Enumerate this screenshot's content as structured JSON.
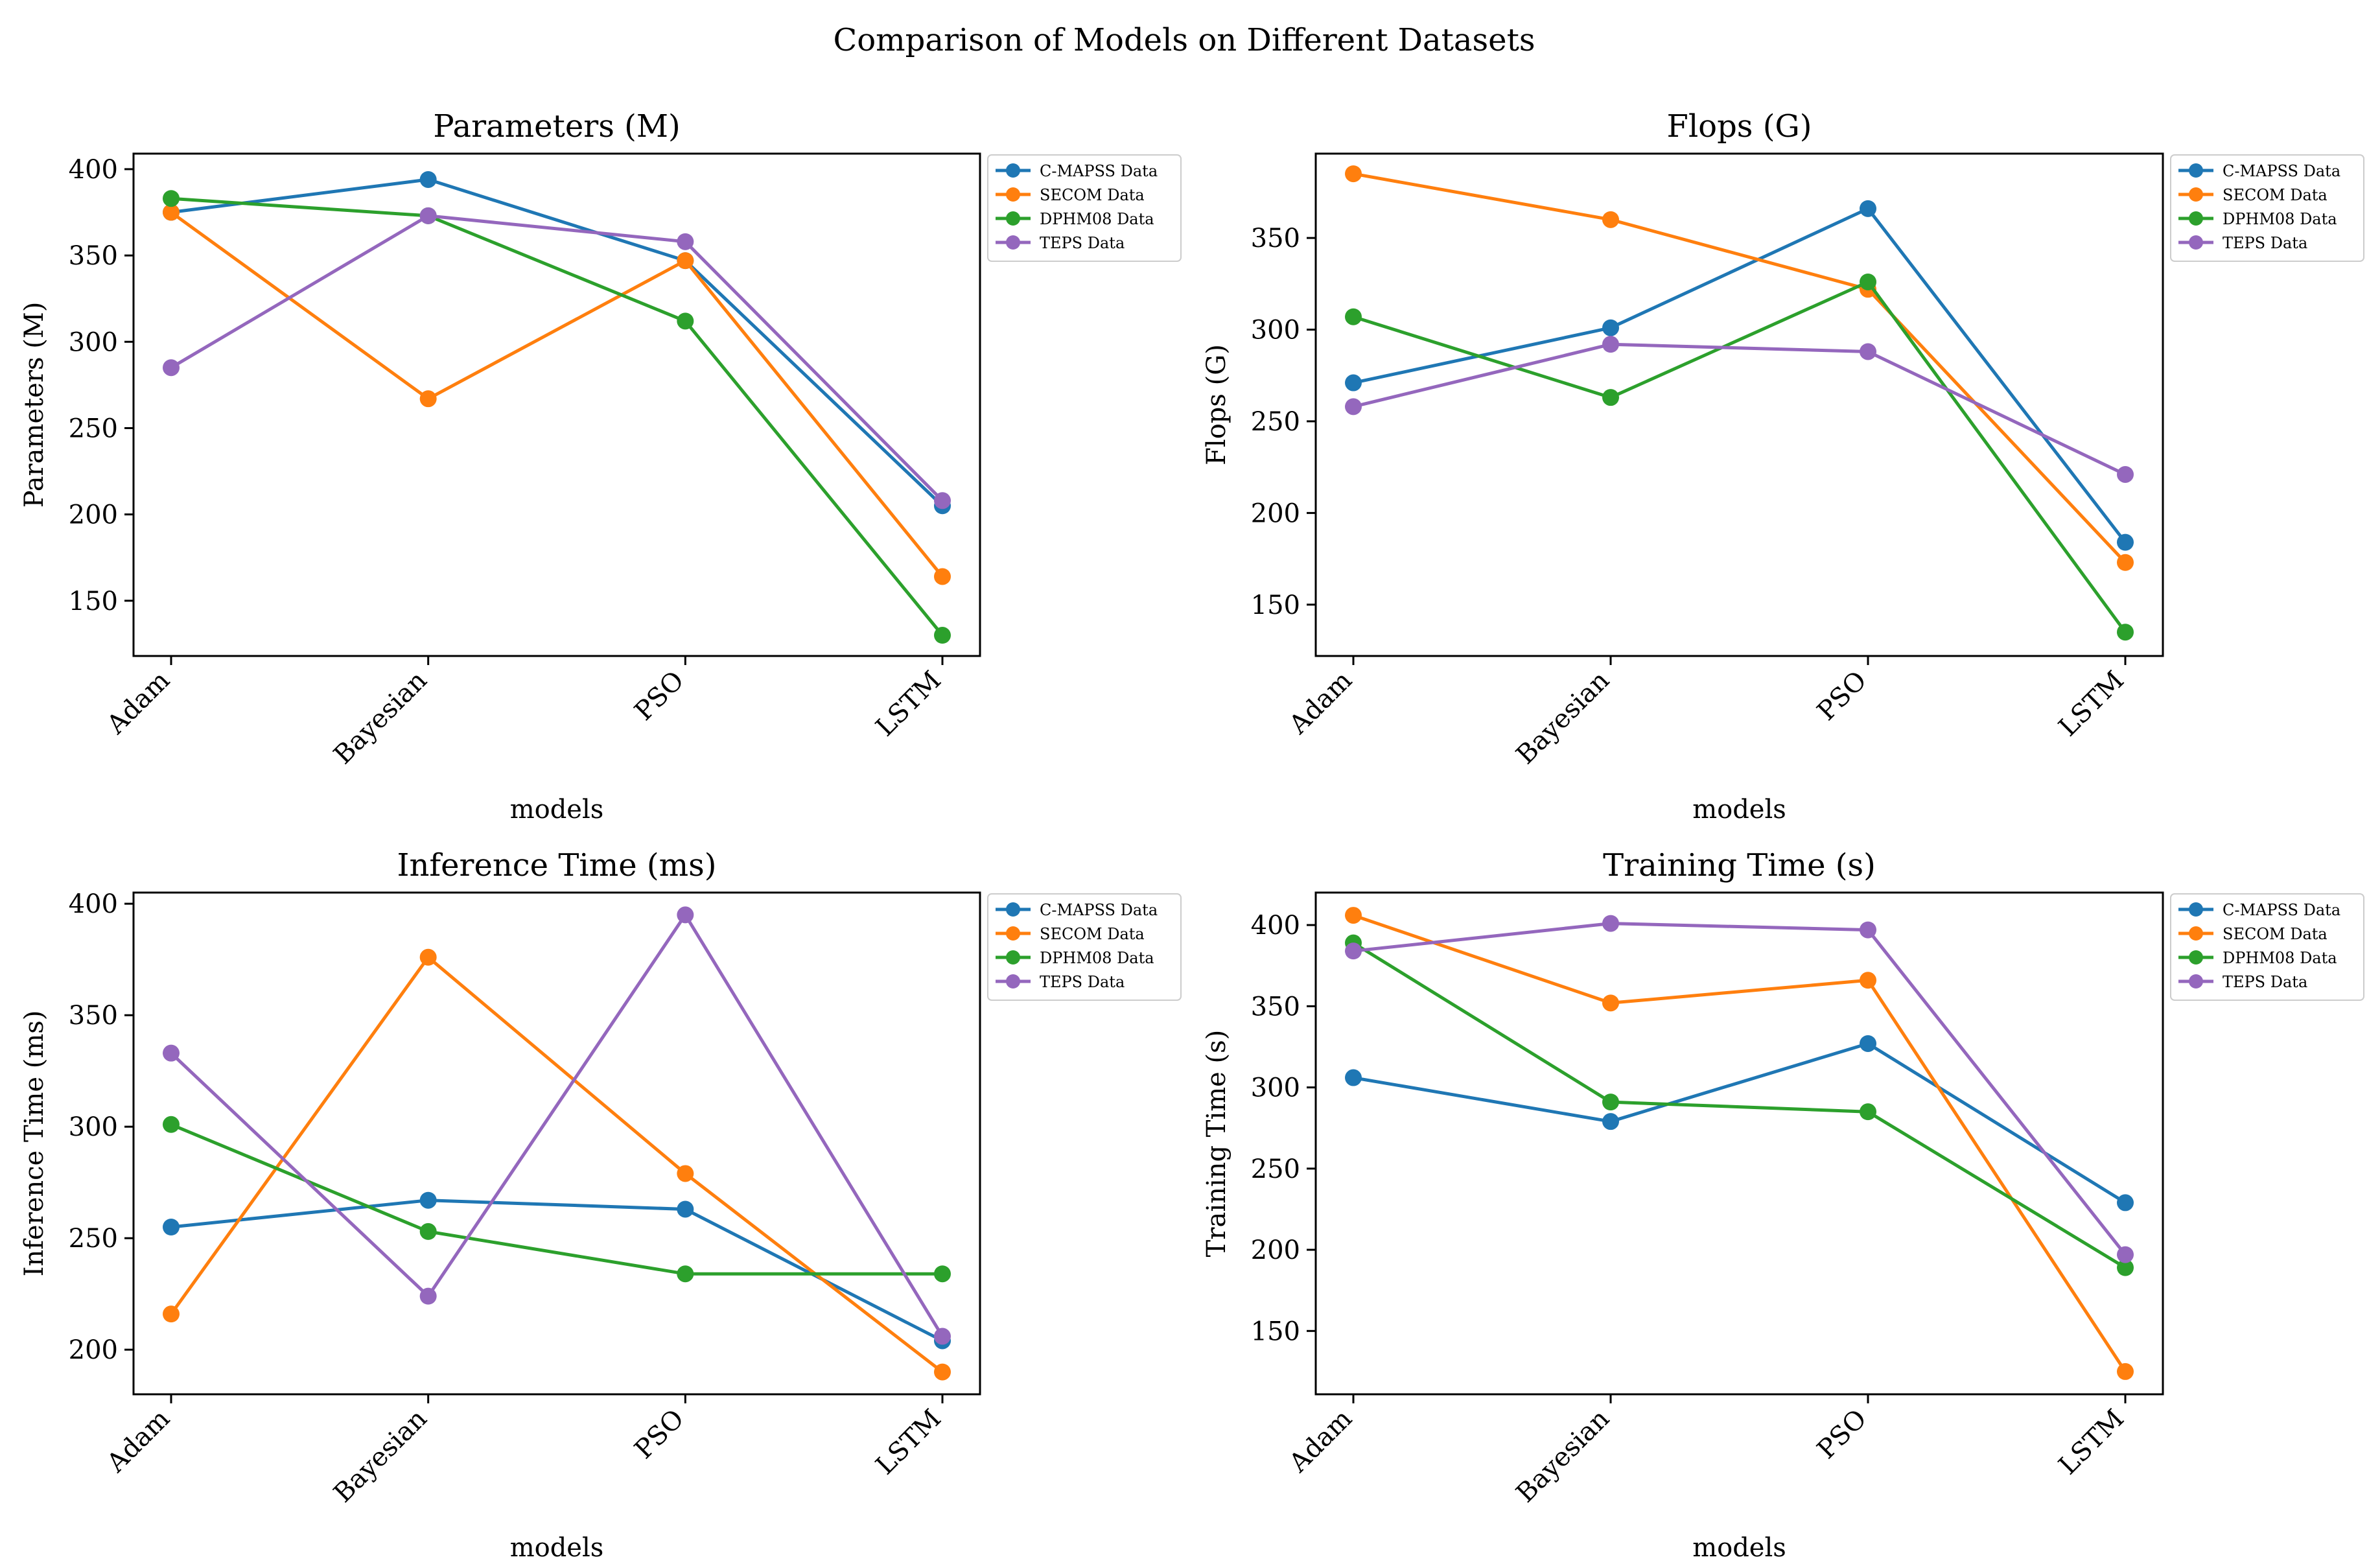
{
  "figure": {
    "suptitle": "Comparison of Models on Different Datasets"
  },
  "chart_data": [
    {
      "type": "line",
      "title": "Parameters (M)",
      "xlabel": "models",
      "ylabel": "Parameters (M)",
      "categories": [
        "Adam",
        "Bayesian",
        "PSO",
        "LSTM"
      ],
      "ylim": [
        118,
        409
      ],
      "yticks": [
        150,
        200,
        250,
        300,
        350,
        400
      ],
      "legend_position": "outside upper right",
      "series": [
        {
          "name": "C-MAPSS Data",
          "color": "#1f77b4",
          "values": [
            375,
            394,
            347,
            205
          ]
        },
        {
          "name": "SECOM Data",
          "color": "#ff7f0e",
          "values": [
            375,
            267,
            347,
            164
          ]
        },
        {
          "name": "DPHM08 Data",
          "color": "#2ca02c",
          "values": [
            383,
            373,
            312,
            130
          ]
        },
        {
          "name": "TEPS Data",
          "color": "#9467bd",
          "values": [
            285,
            373,
            358,
            208
          ]
        }
      ]
    },
    {
      "type": "line",
      "title": "Flops (G)",
      "xlabel": "models",
      "ylabel": "Flops (G)",
      "categories": [
        "Adam",
        "Bayesian",
        "PSO",
        "LSTM"
      ],
      "ylim": [
        122,
        396
      ],
      "yticks": [
        150,
        200,
        250,
        300,
        350
      ],
      "legend_position": "outside upper right",
      "series": [
        {
          "name": "C-MAPSS Data",
          "color": "#1f77b4",
          "values": [
            271,
            301,
            366,
            184
          ]
        },
        {
          "name": "SECOM Data",
          "color": "#ff7f0e",
          "values": [
            385,
            360,
            322,
            173
          ]
        },
        {
          "name": "DPHM08 Data",
          "color": "#2ca02c",
          "values": [
            307,
            263,
            326,
            135
          ]
        },
        {
          "name": "TEPS Data",
          "color": "#9467bd",
          "values": [
            258,
            292,
            288,
            221
          ]
        }
      ]
    },
    {
      "type": "line",
      "title": "Inference Time (ms)",
      "xlabel": "models",
      "ylabel": "Inference Time (ms)",
      "categories": [
        "Adam",
        "Bayesian",
        "PSO",
        "LSTM"
      ],
      "ylim": [
        180,
        405
      ],
      "yticks": [
        200,
        250,
        300,
        350,
        400
      ],
      "legend_position": "outside upper right",
      "series": [
        {
          "name": "C-MAPSS Data",
          "color": "#1f77b4",
          "values": [
            255,
            267,
            263,
            204
          ]
        },
        {
          "name": "SECOM Data",
          "color": "#ff7f0e",
          "values": [
            216,
            376,
            279,
            190
          ]
        },
        {
          "name": "DPHM08 Data",
          "color": "#2ca02c",
          "values": [
            301,
            253,
            234,
            234
          ]
        },
        {
          "name": "TEPS Data",
          "color": "#9467bd",
          "values": [
            333,
            224,
            395,
            206
          ]
        }
      ]
    },
    {
      "type": "line",
      "title": "Training Time (s)",
      "xlabel": "models",
      "ylabel": "Training Time (s)",
      "categories": [
        "Adam",
        "Bayesian",
        "PSO",
        "LSTM"
      ],
      "ylim": [
        111,
        420
      ],
      "yticks": [
        150,
        200,
        250,
        300,
        350,
        400
      ],
      "legend_position": "outside upper right",
      "series": [
        {
          "name": "C-MAPSS Data",
          "color": "#1f77b4",
          "values": [
            306,
            279,
            327,
            229
          ]
        },
        {
          "name": "SECOM Data",
          "color": "#ff7f0e",
          "values": [
            406,
            352,
            366,
            125
          ]
        },
        {
          "name": "DPHM08 Data",
          "color": "#2ca02c",
          "values": [
            389,
            291,
            285,
            189
          ]
        },
        {
          "name": "TEPS Data",
          "color": "#9467bd",
          "values": [
            384,
            401,
            397,
            197
          ]
        }
      ]
    }
  ]
}
